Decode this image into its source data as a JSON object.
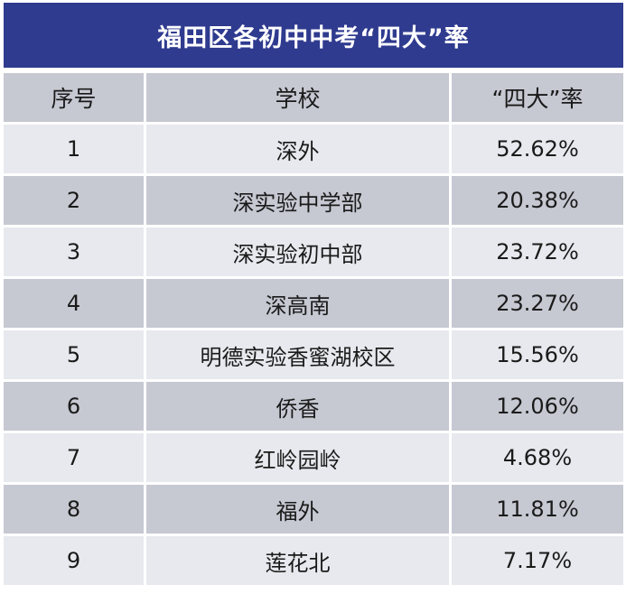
{
  "title": "福田区各初中中考“四大”率",
  "headers": {
    "index": "序号",
    "school": "学校",
    "rate": "“四大”率"
  },
  "rows": [
    {
      "index": "1",
      "school": "深外",
      "rate": "52.62%"
    },
    {
      "index": "2",
      "school": "深实验中学部",
      "rate": "20.38%"
    },
    {
      "index": "3",
      "school": "深实验初中部",
      "rate": "23.72%"
    },
    {
      "index": "4",
      "school": "深高南",
      "rate": "23.27%"
    },
    {
      "index": "5",
      "school": "明德实验香蜜湖校区",
      "rate": "15.56%"
    },
    {
      "index": "6",
      "school": "侨香",
      "rate": "12.06%"
    },
    {
      "index": "7",
      "school": "红岭园岭",
      "rate": "4.68%"
    },
    {
      "index": "8",
      "school": "福外",
      "rate": "11.81%"
    },
    {
      "index": "9",
      "school": "莲花北",
      "rate": "7.17%"
    }
  ],
  "colors": {
    "title_background": "#2f3b8f",
    "header_background": "#c6c8d2",
    "row_light": "#e8e9ee",
    "row_dark": "#c6c8d2"
  }
}
